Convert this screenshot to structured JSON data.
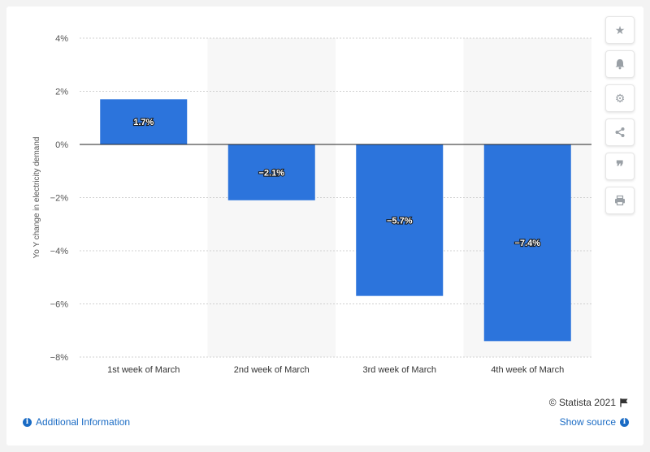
{
  "chart_data": {
    "type": "bar",
    "categories": [
      "1st week of March",
      "2nd week of March",
      "3rd week of March",
      "4th week of March"
    ],
    "values": [
      1.7,
      -2.1,
      -5.7,
      -7.4
    ],
    "data_labels": [
      "1.7%",
      "−2.1%",
      "−5.7%",
      "−7.4%"
    ],
    "ylabel": "Yo Y change in electricity demand",
    "ylim": [
      -8,
      4
    ],
    "yticks": [
      4,
      2,
      0,
      -2,
      -4,
      -6,
      -8
    ],
    "ytick_labels": [
      "4%",
      "2%",
      "0%",
      "−2%",
      "−4%",
      "−6%",
      "−8%"
    ],
    "bar_color": "#2c74dc",
    "grid": true
  },
  "sidebar": {
    "icons": [
      "star-icon",
      "bell-icon",
      "gear-icon",
      "share-icon",
      "quote-icon",
      "print-icon"
    ]
  },
  "footer": {
    "credit": "© Statista 2021",
    "additional_info": "Additional Information",
    "show_source": "Show source"
  }
}
